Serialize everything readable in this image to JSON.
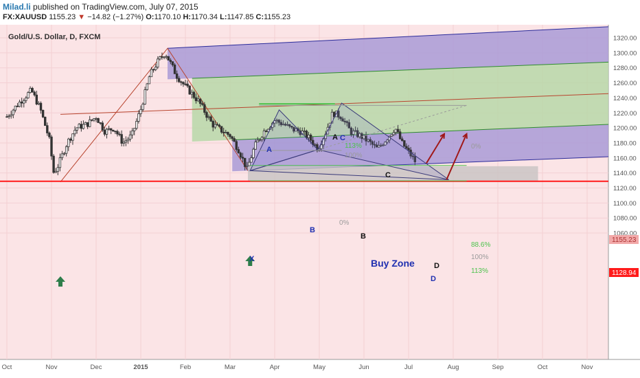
{
  "header": {
    "author": "Milad.li",
    "published": "published on TradingView.com, July 07, 2015",
    "symbol": "FX:XAUUSD",
    "last": "1155.23",
    "change_arrow": "▼",
    "change": "−14.82 (−1.27%)",
    "open_label": "O:",
    "open": "1170.10",
    "high_label": "H:",
    "high": "1170.34",
    "low_label": "L:",
    "low": "1147.85",
    "close_label": "C:",
    "close": "1155.23"
  },
  "chart_data": {
    "type": "candlestick",
    "title": "Gold/U.S. Dollar, D, FXCM",
    "y_ticks": [
      1060,
      1080,
      1100,
      1120,
      1140,
      1160,
      1180,
      1200,
      1220,
      1240,
      1260,
      1280,
      1300,
      1320
    ],
    "x_labels": [
      {
        "label": "Oct",
        "month": 0
      },
      {
        "label": "Nov",
        "month": 1
      },
      {
        "label": "Dec",
        "month": 2
      },
      {
        "label": "2015",
        "month": 3
      },
      {
        "label": "Feb",
        "month": 4
      },
      {
        "label": "Mar",
        "month": 5
      },
      {
        "label": "Apr",
        "month": 6
      },
      {
        "label": "May",
        "month": 7
      },
      {
        "label": "Jun",
        "month": 8
      },
      {
        "label": "Jul",
        "month": 9
      },
      {
        "label": "Aug",
        "month": 10
      },
      {
        "label": "Sep",
        "month": 11
      },
      {
        "label": "Oct",
        "month": 12
      },
      {
        "label": "Nov",
        "month": 13
      }
    ],
    "price_path": [
      [
        0,
        1215
      ],
      [
        0.3,
        1235
      ],
      [
        0.55,
        1250
      ],
      [
        0.75,
        1225
      ],
      [
        0.95,
        1185
      ],
      [
        1.05,
        1140
      ],
      [
        1.15,
        1150
      ],
      [
        1.35,
        1180
      ],
      [
        1.55,
        1200
      ],
      [
        1.8,
        1205
      ],
      [
        2.0,
        1215
      ],
      [
        2.2,
        1195
      ],
      [
        2.4,
        1200
      ],
      [
        2.6,
        1180
      ],
      [
        2.8,
        1190
      ],
      [
        3.0,
        1225
      ],
      [
        3.2,
        1270
      ],
      [
        3.4,
        1290
      ],
      [
        3.55,
        1300
      ],
      [
        3.8,
        1270
      ],
      [
        4.0,
        1255
      ],
      [
        4.3,
        1235
      ],
      [
        4.6,
        1205
      ],
      [
        4.85,
        1195
      ],
      [
        5.0,
        1190
      ],
      [
        5.2,
        1170
      ],
      [
        5.38,
        1145
      ],
      [
        5.55,
        1175
      ],
      [
        5.75,
        1195
      ],
      [
        6.0,
        1210
      ],
      [
        6.2,
        1205
      ],
      [
        6.4,
        1198
      ],
      [
        6.6,
        1195
      ],
      [
        6.8,
        1185
      ],
      [
        6.97,
        1172
      ],
      [
        7.15,
        1195
      ],
      [
        7.3,
        1220
      ],
      [
        7.5,
        1215
      ],
      [
        7.7,
        1195
      ],
      [
        7.9,
        1190
      ],
      [
        8.1,
        1182
      ],
      [
        8.3,
        1172
      ],
      [
        8.5,
        1185
      ],
      [
        8.7,
        1200
      ],
      [
        8.85,
        1180
      ],
      [
        9.0,
        1168
      ],
      [
        9.15,
        1155
      ]
    ],
    "markers": {
      "last_price": "1155.23",
      "support_price": "1128.94"
    },
    "support_level": 1128.94,
    "harmonic_points": {
      "x_label": "X",
      "a_label": "A",
      "b_label": "B",
      "c_label": "C",
      "d_label": "D"
    },
    "fib_labels": {
      "zero": "0%",
      "level_100": "100%",
      "level_113": "113%",
      "level_886": "88.6%"
    },
    "buy_zone_label": "Buy Zone",
    "colors": {
      "bull_candle": "#333333",
      "bear_candle": "#333333",
      "background": "#fbe4e6",
      "support": "#ff1a1a",
      "upper_channel": "#2b2b9a",
      "mid_channel": "#2e8b2e",
      "median_line": "#b8442e",
      "channel_purple": "#a99bd6",
      "channel_green": "#b7d8a8",
      "buy_zone_grey": "#c8c3c3",
      "label_blue": "#1f2fb0",
      "arrow_red": "#a01818",
      "up_arrow_green": "#2e7d4a",
      "fib_green": "#4cc24c"
    }
  }
}
